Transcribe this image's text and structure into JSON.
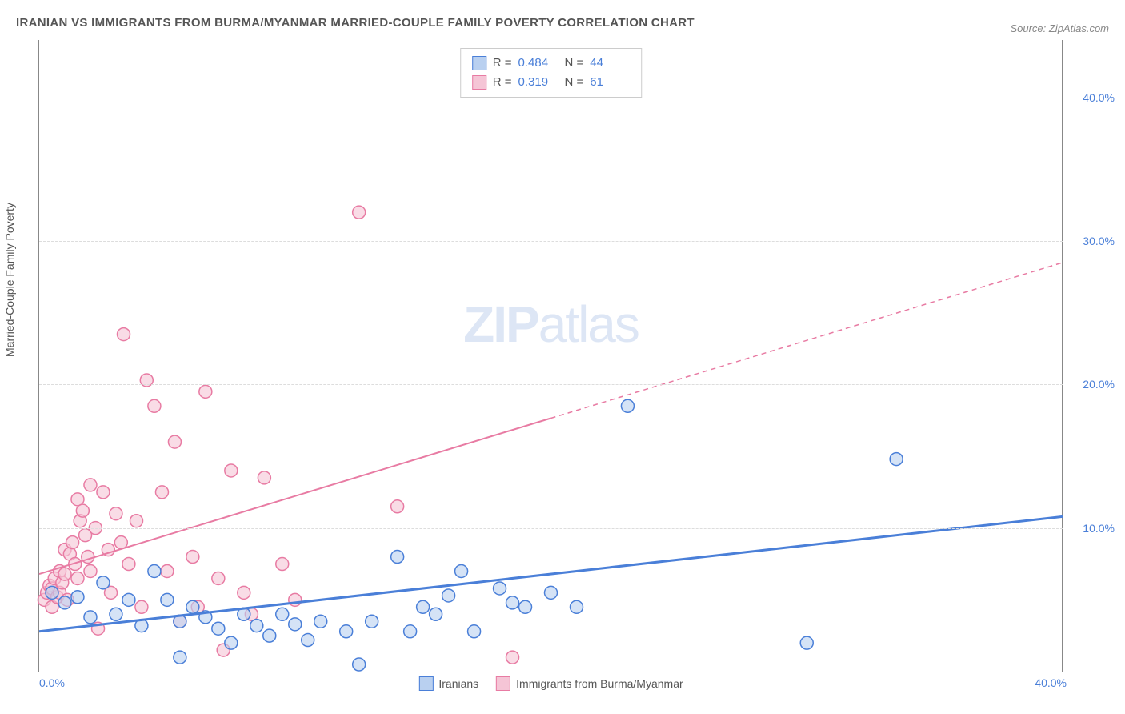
{
  "title": "IRANIAN VS IMMIGRANTS FROM BURMA/MYANMAR MARRIED-COUPLE FAMILY POVERTY CORRELATION CHART",
  "source": "Source: ZipAtlas.com",
  "y_axis_label": "Married-Couple Family Poverty",
  "watermark": {
    "bold": "ZIP",
    "light": "atlas"
  },
  "chart": {
    "type": "scatter",
    "background_color": "#ffffff",
    "grid_color": "#dddddd",
    "axis_color": "#888888",
    "text_color": "#555555",
    "value_color": "#4a7fd8",
    "xlim": [
      0,
      40
    ],
    "ylim": [
      0,
      44
    ],
    "x_ticks": [
      {
        "pos": 0,
        "label": "0.0%"
      },
      {
        "pos": 40,
        "label": "40.0%"
      }
    ],
    "y_ticks": [
      {
        "pos": 10,
        "label": "10.0%"
      },
      {
        "pos": 20,
        "label": "20.0%"
      },
      {
        "pos": 30,
        "label": "30.0%"
      },
      {
        "pos": 40,
        "label": "40.0%"
      }
    ],
    "marker_radius": 8,
    "marker_stroke_width": 1.5,
    "marker_fill_opacity": 0.25,
    "series": [
      {
        "name": "Iranians",
        "color": "#4a7fd8",
        "fill": "#b9d0f0",
        "r_value": "0.484",
        "n_value": "44",
        "trend": {
          "x1": 0,
          "y1": 2.8,
          "x2": 40,
          "y2": 10.8,
          "solid_until_x": 40,
          "width": 3
        },
        "points": [
          [
            0.5,
            5.5
          ],
          [
            1.0,
            4.8
          ],
          [
            1.5,
            5.2
          ],
          [
            2.0,
            3.8
          ],
          [
            2.5,
            6.2
          ],
          [
            3.0,
            4.0
          ],
          [
            3.5,
            5.0
          ],
          [
            4.0,
            3.2
          ],
          [
            4.5,
            7.0
          ],
          [
            5.0,
            5.0
          ],
          [
            5.5,
            3.5
          ],
          [
            5.5,
            1.0
          ],
          [
            6.0,
            4.5
          ],
          [
            6.5,
            3.8
          ],
          [
            7.0,
            3.0
          ],
          [
            7.5,
            2.0
          ],
          [
            8.0,
            4.0
          ],
          [
            8.5,
            3.2
          ],
          [
            9.0,
            2.5
          ],
          [
            9.5,
            4.0
          ],
          [
            10.0,
            3.3
          ],
          [
            10.5,
            2.2
          ],
          [
            11.0,
            3.5
          ],
          [
            12.0,
            2.8
          ],
          [
            12.5,
            0.5
          ],
          [
            13.0,
            3.5
          ],
          [
            14.0,
            8.0
          ],
          [
            14.5,
            2.8
          ],
          [
            15.0,
            4.5
          ],
          [
            15.5,
            4.0
          ],
          [
            16.0,
            5.3
          ],
          [
            16.5,
            7.0
          ],
          [
            17.0,
            2.8
          ],
          [
            18.0,
            5.8
          ],
          [
            18.5,
            4.8
          ],
          [
            19.0,
            4.5
          ],
          [
            20.0,
            5.5
          ],
          [
            21.0,
            4.5
          ],
          [
            23.0,
            18.5
          ],
          [
            30.0,
            2.0
          ],
          [
            33.5,
            14.8
          ]
        ]
      },
      {
        "name": "Immigrants from Burma/Myanmar",
        "color": "#e87ba3",
        "fill": "#f5c5d6",
        "r_value": "0.319",
        "n_value": "61",
        "trend": {
          "x1": 0,
          "y1": 6.8,
          "x2": 40,
          "y2": 28.5,
          "solid_until_x": 20,
          "width": 2
        },
        "points": [
          [
            0.2,
            5.0
          ],
          [
            0.3,
            5.5
          ],
          [
            0.4,
            6.0
          ],
          [
            0.5,
            5.8
          ],
          [
            0.5,
            4.5
          ],
          [
            0.6,
            6.5
          ],
          [
            0.7,
            5.2
          ],
          [
            0.8,
            7.0
          ],
          [
            0.8,
            5.5
          ],
          [
            0.9,
            6.2
          ],
          [
            1.0,
            8.5
          ],
          [
            1.0,
            6.8
          ],
          [
            1.1,
            5.0
          ],
          [
            1.2,
            8.2
          ],
          [
            1.3,
            9.0
          ],
          [
            1.4,
            7.5
          ],
          [
            1.5,
            12.0
          ],
          [
            1.5,
            6.5
          ],
          [
            1.6,
            10.5
          ],
          [
            1.7,
            11.2
          ],
          [
            1.8,
            9.5
          ],
          [
            1.9,
            8.0
          ],
          [
            2.0,
            13.0
          ],
          [
            2.0,
            7.0
          ],
          [
            2.2,
            10.0
          ],
          [
            2.3,
            3.0
          ],
          [
            2.5,
            12.5
          ],
          [
            2.7,
            8.5
          ],
          [
            2.8,
            5.5
          ],
          [
            3.0,
            11.0
          ],
          [
            3.2,
            9.0
          ],
          [
            3.3,
            23.5
          ],
          [
            3.5,
            7.5
          ],
          [
            3.8,
            10.5
          ],
          [
            4.0,
            4.5
          ],
          [
            4.2,
            20.3
          ],
          [
            4.5,
            18.5
          ],
          [
            4.8,
            12.5
          ],
          [
            5.0,
            7.0
          ],
          [
            5.3,
            16.0
          ],
          [
            5.5,
            3.5
          ],
          [
            6.0,
            8.0
          ],
          [
            6.2,
            4.5
          ],
          [
            6.5,
            19.5
          ],
          [
            7.0,
            6.5
          ],
          [
            7.2,
            1.5
          ],
          [
            7.5,
            14.0
          ],
          [
            8.0,
            5.5
          ],
          [
            8.3,
            4.0
          ],
          [
            8.8,
            13.5
          ],
          [
            9.5,
            7.5
          ],
          [
            10.0,
            5.0
          ],
          [
            12.5,
            32.0
          ],
          [
            14.0,
            11.5
          ],
          [
            18.5,
            1.0
          ]
        ]
      }
    ]
  },
  "bottom_legend": [
    {
      "label": "Iranians",
      "color": "#4a7fd8",
      "fill": "#b9d0f0"
    },
    {
      "label": "Immigrants from Burma/Myanmar",
      "color": "#e87ba3",
      "fill": "#f5c5d6"
    }
  ]
}
